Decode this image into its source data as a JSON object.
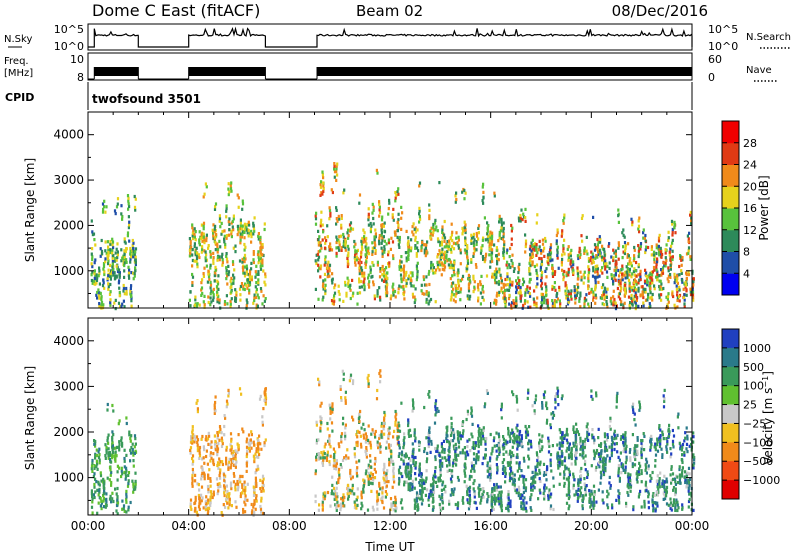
{
  "header": {
    "station_title": "Dome C East (fitACF)",
    "beam": "Beam 02",
    "date": "08/Dec/2016"
  },
  "chart_data": [
    {
      "type": "line",
      "panel": "noise",
      "left_label": "N.Sky",
      "right_label": "N.Search",
      "left_ticks": [
        "10^5",
        "10^0"
      ],
      "right_ticks": [
        "10^5",
        "10^0"
      ],
      "yscale": "log",
      "ylim": [
        1,
        100000
      ],
      "on_intervals_hours": [
        [
          0.25,
          2.0
        ],
        [
          4.0,
          7.05
        ],
        [
          9.1,
          24.0
        ]
      ]
    },
    {
      "type": "line",
      "panel": "frequency",
      "left_label": "Freq. [MHz]",
      "right_label": "Nave",
      "left_ticks": [
        "10",
        "8"
      ],
      "right_ticks": [
        "60",
        "0"
      ],
      "ylim": [
        8,
        10
      ],
      "on_intervals_hours": [
        [
          0.25,
          2.0
        ],
        [
          4.0,
          7.05
        ],
        [
          9.1,
          24.0
        ]
      ]
    },
    {
      "type": "table",
      "panel": "cpid",
      "label": "CPID",
      "entries": [
        {
          "start_hour": 0,
          "text": "twofsound 3501"
        }
      ]
    },
    {
      "type": "heatmap",
      "panel": "power",
      "xlabel": "",
      "ylabel": "Slant Range [km]",
      "xlim": [
        0,
        24
      ],
      "ylim": [
        180,
        4500
      ],
      "yticks": [
        1000,
        2000,
        3000,
        4000
      ],
      "colorbar": {
        "label": "Power [dB]",
        "ticks": [
          "4",
          "8",
          "12",
          "16",
          "20",
          "24",
          "28"
        ],
        "colors": [
          "#0000f0",
          "#1f4ea8",
          "#2d8a5a",
          "#58c23c",
          "#e6d21c",
          "#f08a1a",
          "#e03a14",
          "#f00000"
        ],
        "range": [
          0,
          30
        ]
      },
      "scatter_regions": [
        {
          "t": [
            0.1,
            1.9
          ],
          "r": [
            200,
            2700
          ],
          "value_range": [
            6,
            20
          ]
        },
        {
          "t": [
            4.0,
            7.0
          ],
          "r": [
            200,
            3000
          ],
          "value_range": [
            8,
            24
          ]
        },
        {
          "t": [
            9.0,
            12.3
          ],
          "r": [
            300,
            3400
          ],
          "value_range": [
            8,
            26
          ]
        },
        {
          "t": [
            12.3,
            16.5
          ],
          "r": [
            300,
            3000
          ],
          "value_range": [
            8,
            24
          ]
        },
        {
          "t": [
            16.5,
            24.0
          ],
          "r": [
            200,
            2400
          ],
          "value_range": [
            6,
            28
          ]
        }
      ]
    },
    {
      "type": "heatmap",
      "panel": "velocity",
      "xlabel": "Time UT",
      "ylabel": "Slant Range [km]",
      "xlim": [
        0,
        24
      ],
      "xticks": [
        "00:00",
        "04:00",
        "08:00",
        "12:00",
        "16:00",
        "20:00",
        "00:00"
      ],
      "ylim": [
        180,
        4500
      ],
      "yticks": [
        1000,
        2000,
        3000,
        4000
      ],
      "colorbar": {
        "label": "Velocity [m s⁻¹]",
        "ticks": [
          "1000",
          "500",
          "100",
          "25",
          "−25",
          "−100",
          "−500",
          "−1000"
        ],
        "colors": [
          "#2040c0",
          "#2a7a8a",
          "#3a9a5a",
          "#60c030",
          "#c8c8c8",
          "#f0c020",
          "#f08a1a",
          "#f04a14",
          "#e00000"
        ]
      },
      "scatter_regions": [
        {
          "t": [
            0.1,
            1.9
          ],
          "r": [
            200,
            2700
          ],
          "velocity": "mixed green"
        },
        {
          "t": [
            4.0,
            7.0
          ],
          "r": [
            200,
            3000
          ],
          "velocity": "orange / grey"
        },
        {
          "t": [
            9.0,
            12.3
          ],
          "r": [
            300,
            3400
          ],
          "velocity": "orange / grey / green"
        },
        {
          "t": [
            12.3,
            24.0
          ],
          "r": [
            300,
            3000
          ],
          "velocity": "green / blue"
        }
      ]
    }
  ]
}
